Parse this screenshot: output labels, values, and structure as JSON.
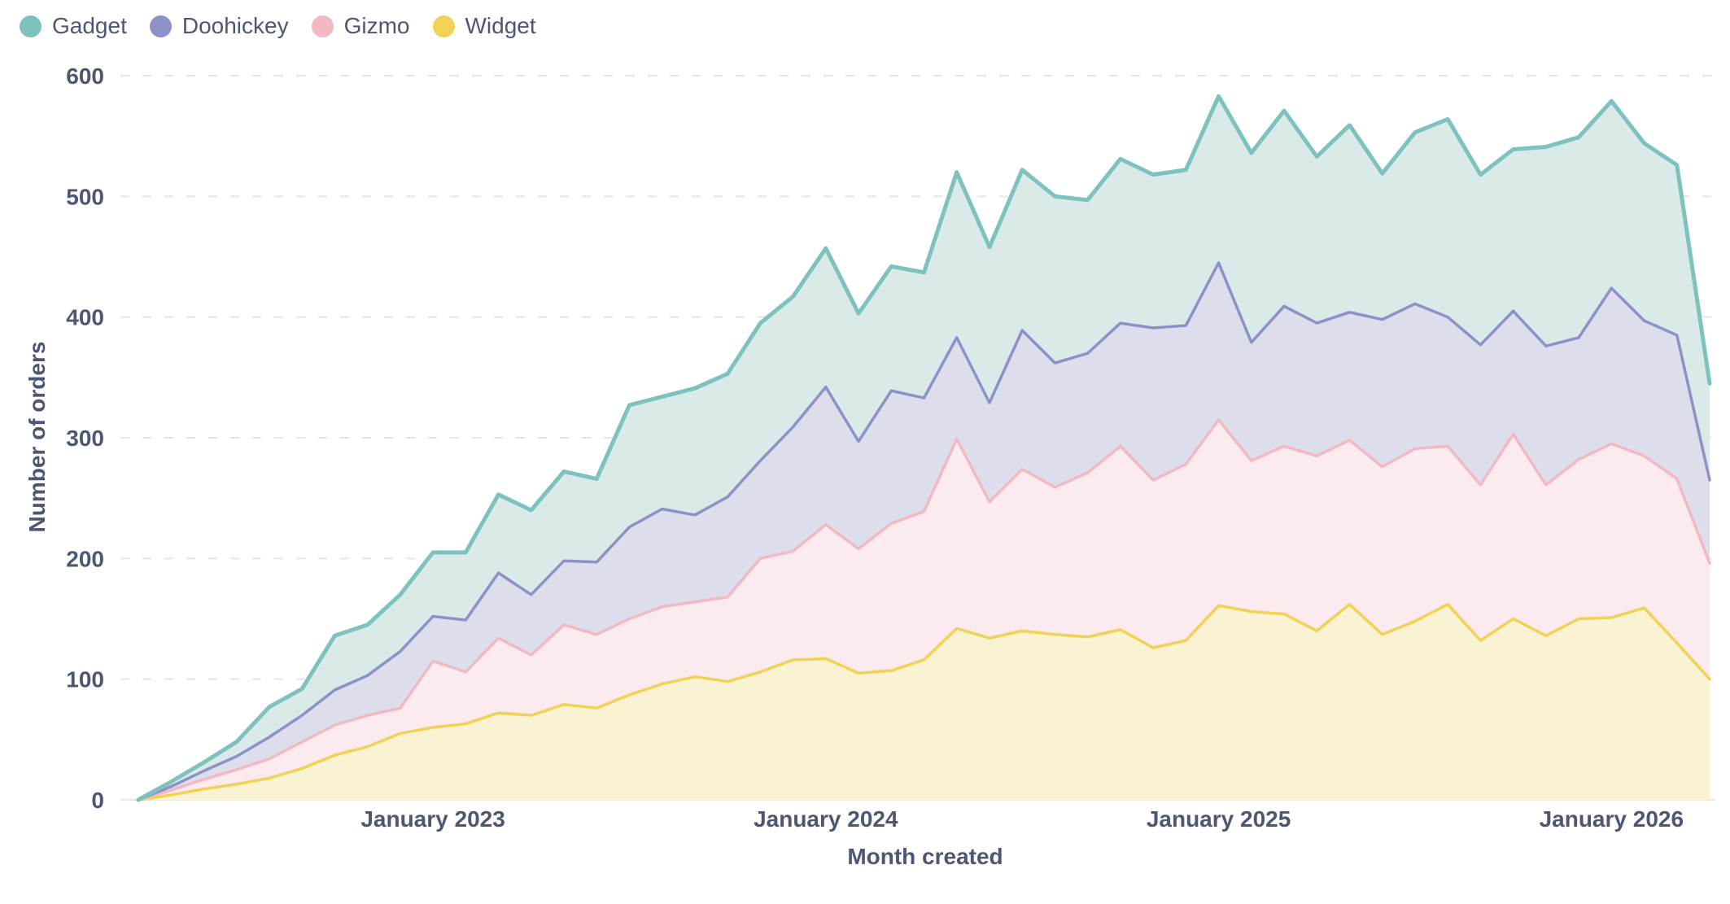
{
  "legend": [
    {
      "label": "Gadget"
    },
    {
      "label": "Doohickey"
    },
    {
      "label": "Gizmo"
    },
    {
      "label": "Widget"
    }
  ],
  "colors": {
    "text": "#4C5773",
    "gridline": "#E3E5E8",
    "axis_line": "#E9EAEC",
    "Gadget": {
      "line": "#7EC2BD",
      "fill": "#D9EAE8"
    },
    "Doohickey": {
      "line": "#8D91C7",
      "fill": "#DDDEEC"
    },
    "Gizmo": {
      "line": "#F2B9C2",
      "fill": "#FBEAEE"
    },
    "Widget": {
      "line": "#F1D254",
      "fill": "#FAF3D3"
    }
  },
  "chart_data": {
    "type": "area",
    "stacked": true,
    "title": "",
    "xlabel": "Month created",
    "ylabel": "Number of orders",
    "ylim": [
      0,
      620
    ],
    "y_ticks": [
      0,
      100,
      200,
      300,
      400,
      500,
      600
    ],
    "grid": "dashed-horizontal",
    "legend_position": "top-left",
    "stack_order_bottom_to_top": [
      "Widget",
      "Gizmo",
      "Doohickey",
      "Gadget"
    ],
    "x": [
      "April 2022",
      "May 2022",
      "June 2022",
      "July 2022",
      "August 2022",
      "September 2022",
      "October 2022",
      "November 2022",
      "December 2022",
      "January 2023",
      "February 2023",
      "March 2023",
      "April 2023",
      "May 2023",
      "June 2023",
      "July 2023",
      "August 2023",
      "September 2023",
      "October 2023",
      "November 2023",
      "December 2023",
      "January 2024",
      "February 2024",
      "March 2024",
      "April 2024",
      "May 2024",
      "June 2024",
      "July 2024",
      "August 2024",
      "September 2024",
      "October 2024",
      "November 2024",
      "December 2024",
      "January 2025",
      "February 2025",
      "March 2025",
      "April 2025",
      "May 2025",
      "June 2025",
      "July 2025",
      "August 2025",
      "September 2025",
      "October 2025",
      "November 2025",
      "December 2025",
      "January 2026",
      "February 2026",
      "March 2026",
      "April 2026"
    ],
    "x_tick_labels": [
      "January 2023",
      "January 2024",
      "January 2025",
      "January 2026"
    ],
    "x_tick_indices": [
      9,
      21,
      33,
      45
    ],
    "series": [
      {
        "name": "Widget",
        "values": [
          0,
          4,
          9,
          13,
          18,
          26,
          37,
          44,
          55,
          60,
          63,
          72,
          70,
          79,
          76,
          87,
          96,
          102,
          98,
          106,
          116,
          117,
          105,
          107,
          116,
          142,
          134,
          140,
          137,
          135,
          141,
          126,
          132,
          161,
          156,
          154,
          140,
          162,
          137,
          148,
          162,
          132,
          150,
          136,
          150,
          151,
          159,
          130,
          100
        ]
      },
      {
        "name": "Gizmo",
        "values": [
          0,
          4,
          8,
          12,
          16,
          22,
          25,
          26,
          21,
          55,
          43,
          62,
          50,
          66,
          61,
          63,
          64,
          62,
          70,
          94,
          90,
          111,
          103,
          122,
          123,
          157,
          113,
          134,
          122,
          136,
          152,
          139,
          146,
          154,
          125,
          139,
          145,
          136,
          139,
          143,
          131,
          129,
          153,
          125,
          132,
          144,
          126,
          136,
          96
        ]
      },
      {
        "name": "Doohickey",
        "values": [
          0,
          3,
          7,
          11,
          18,
          22,
          29,
          33,
          47,
          37,
          43,
          54,
          50,
          53,
          60,
          76,
          81,
          72,
          83,
          81,
          103,
          114,
          89,
          110,
          94,
          84,
          82,
          115,
          103,
          99,
          102,
          126,
          115,
          130,
          98,
          116,
          110,
          106,
          122,
          120,
          107,
          116,
          102,
          115,
          101,
          129,
          112,
          119,
          69
        ]
      },
      {
        "name": "Gadget",
        "values": [
          0,
          4,
          7,
          12,
          25,
          22,
          45,
          42,
          47,
          53,
          56,
          65,
          70,
          74,
          69,
          101,
          93,
          105,
          102,
          114,
          108,
          115,
          106,
          103,
          104,
          137,
          129,
          133,
          138,
          127,
          136,
          127,
          129,
          138,
          157,
          162,
          138,
          155,
          121,
          142,
          164,
          141,
          134,
          165,
          166,
          155,
          147,
          141,
          80
        ]
      }
    ]
  }
}
